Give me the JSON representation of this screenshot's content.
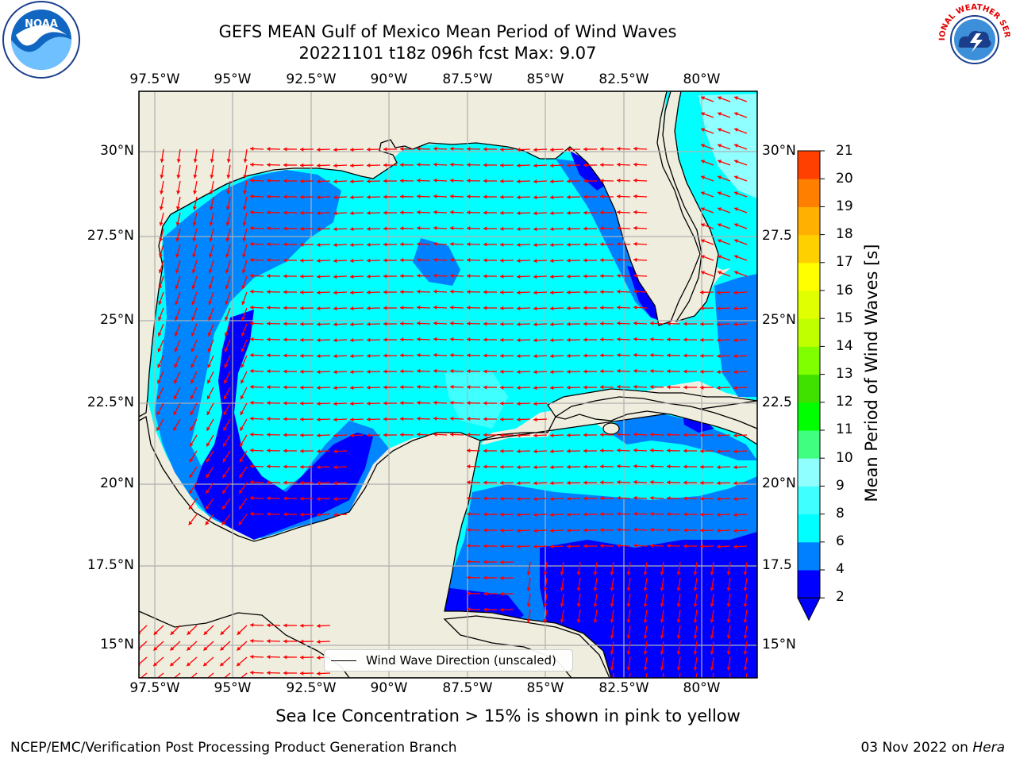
{
  "title": {
    "line1": "GEFS MEAN Gulf of Mexico Mean Period of Wind Waves",
    "line2": "20221101 t18z 096h fcst   Max: 9.07"
  },
  "axes": {
    "lon_labels": [
      "97.5°W",
      "95°W",
      "92.5°W",
      "90°W",
      "87.5°W",
      "85°W",
      "82.5°W",
      "80°W"
    ],
    "lat_labels_left": [
      "30°N",
      "27.5°N",
      "25°N",
      "22.5°N",
      "20°N",
      "17.5°N",
      "15°N"
    ],
    "lat_labels_right": [
      "30°N",
      "27.5",
      "25°N",
      "22.5",
      "20°N",
      "17.5",
      "15°N"
    ]
  },
  "colorbar": {
    "label": "Mean Period of Wind Waves [s]",
    "ticks": [
      "2",
      "4",
      "6",
      "8",
      "9",
      "10",
      "11",
      "12",
      "13",
      "14",
      "15",
      "16",
      "17",
      "18",
      "19",
      "20",
      "21"
    ],
    "colors": [
      "#0000ff",
      "#0080ff",
      "#00ffff",
      "#40ffff",
      "#90ffff",
      "#40ff80",
      "#00ff00",
      "#40e000",
      "#80ff00",
      "#c0ff00",
      "#e0ff00",
      "#ffff00",
      "#ffd000",
      "#ffb000",
      "#ff8000",
      "#ff4000",
      "#ff0000"
    ]
  },
  "legend": {
    "label": "Wind Wave Direction (unscaled)"
  },
  "footnote": "Sea Ice Concentration > 15% is shown in pink to yellow",
  "credits": {
    "left": "NCEP/EMC/Verification Post Processing Product Generation Branch",
    "right_date": "03 Nov 2022 on ",
    "right_host": "Hera"
  },
  "logos": {
    "noaa": {
      "icon": "noaa-logo",
      "text": "NOAA"
    },
    "nws": {
      "icon": "nws-logo",
      "text": "NATIONAL WEATHER SERVICE"
    }
  },
  "colors": {
    "land": "#efedde",
    "grid": "#b0b0b0",
    "arrow": "#ff0000"
  }
}
